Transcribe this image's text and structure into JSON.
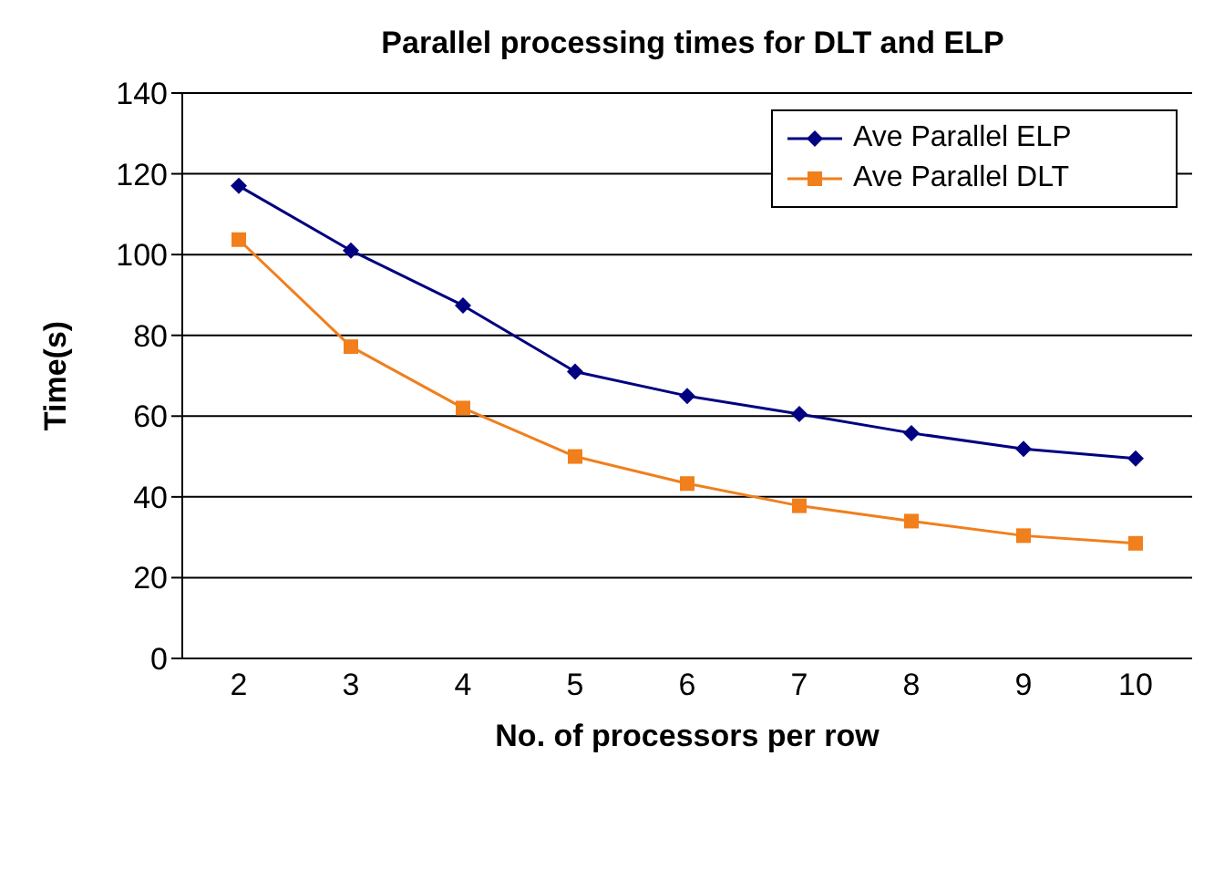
{
  "chart_data": {
    "type": "line",
    "title": "Parallel processing times for DLT and ELP",
    "xlabel": "No. of processors per row",
    "ylabel": "Time(s)",
    "categories": [
      "2",
      "3",
      "4",
      "5",
      "6",
      "7",
      "8",
      "9",
      "10"
    ],
    "series": [
      {
        "name": "Ave Parallel ELP",
        "color": "#000080",
        "marker": "diamond",
        "values": [
          117,
          101,
          87.4,
          71,
          65,
          60.5,
          55.8,
          51.9,
          49.5
        ]
      },
      {
        "name": "Ave Parallel DLT",
        "color": "#f07f1c",
        "marker": "square",
        "values": [
          103.7,
          77.2,
          62,
          50,
          43.3,
          37.8,
          34,
          30.4,
          28.5
        ]
      }
    ],
    "ylim": [
      0,
      140
    ],
    "yticks": [
      0,
      20,
      40,
      60,
      80,
      100,
      120,
      140
    ],
    "grid": "y",
    "legend": "top right",
    "line_style": "solid"
  }
}
